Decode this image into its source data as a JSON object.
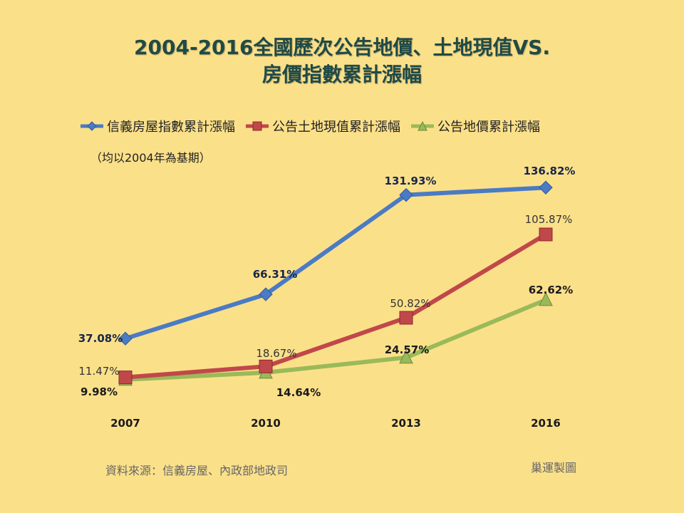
{
  "header": {
    "title_line1": "2004-2016全國歷次公告地價、土地現值VS.",
    "title_line2": "房價指數累計漲幅"
  },
  "note": "（均以2004年為基期）",
  "source": "資料來源：信義房屋、內政部地政司",
  "maker": "巢運製圖",
  "colors": {
    "background": "#fbe08a",
    "title": "#1f4a47",
    "series_blue": "#4a7bc4",
    "series_red": "#c0484a",
    "series_green": "#9aba59"
  },
  "chart_data": {
    "type": "line",
    "categories": [
      "2007",
      "2010",
      "2013",
      "2016"
    ],
    "grid": false,
    "legend_position": "top",
    "series": [
      {
        "name": "信義房屋指數累計漲幅",
        "values": [
          37.08,
          66.31,
          131.93,
          136.82
        ],
        "labels": [
          "37.08%",
          "66.31%",
          "131.93%",
          "136.82%"
        ],
        "marker": "diamond",
        "color": "#4a7bc4"
      },
      {
        "name": "公告土地現值累計漲幅",
        "values": [
          11.47,
          18.67,
          50.82,
          105.87
        ],
        "labels": [
          "11.47%",
          "18.67%",
          "50.82%",
          "105.87%"
        ],
        "marker": "square",
        "color": "#c0484a"
      },
      {
        "name": "公告地價累計漲幅",
        "values": [
          9.98,
          14.64,
          24.57,
          62.62
        ],
        "labels": [
          "9.98%",
          "14.64%",
          "24.57%",
          "62.62%"
        ],
        "marker": "triangle",
        "color": "#9aba59"
      }
    ]
  }
}
